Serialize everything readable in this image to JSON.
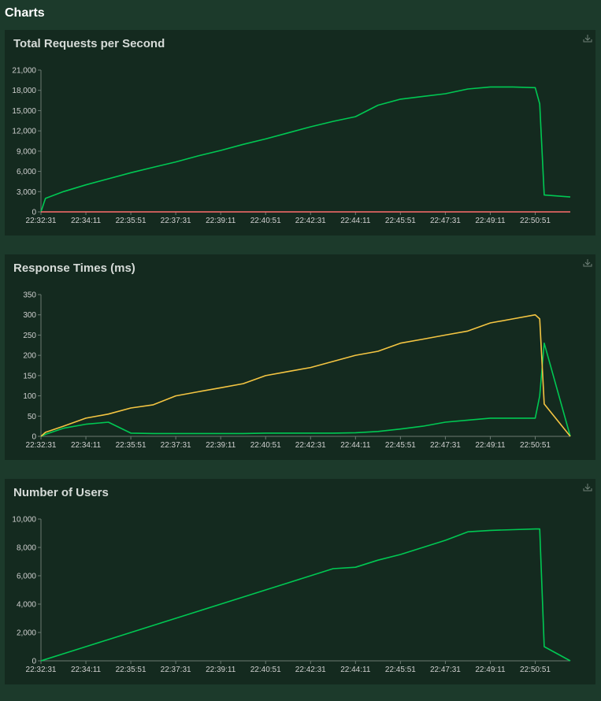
{
  "page_title": "Charts",
  "chart_data": [
    {
      "type": "line",
      "title": "Total Requests per Second",
      "x": [
        "22:32:31",
        "22:32:41",
        "22:33:21",
        "22:34:11",
        "22:35:01",
        "22:35:51",
        "22:36:41",
        "22:37:31",
        "22:38:21",
        "22:39:11",
        "22:40:01",
        "22:40:51",
        "22:41:41",
        "22:42:31",
        "22:43:21",
        "22:44:11",
        "22:45:01",
        "22:45:51",
        "22:46:41",
        "22:47:31",
        "22:48:21",
        "22:49:11",
        "22:50:01",
        "22:50:51",
        "22:51:01",
        "22:51:11",
        "22:52:09"
      ],
      "series": [
        {
          "color": "#00c853",
          "values": [
            0,
            2000,
            3000,
            4000,
            4900,
            5800,
            6600,
            7400,
            8300,
            9100,
            10000,
            10800,
            11700,
            12600,
            13400,
            14100,
            15800,
            16700,
            17100,
            17500,
            18200,
            18500,
            18500,
            18400,
            16000,
            2500,
            2200
          ]
        },
        {
          "color": "#ff6d6d",
          "values": [
            0,
            0,
            0,
            0,
            0,
            0,
            0,
            0,
            0,
            0,
            0,
            0,
            0,
            0,
            0,
            0,
            0,
            0,
            0,
            0,
            0,
            0,
            0,
            0,
            0,
            0,
            0
          ]
        }
      ],
      "xlim": [
        "22:32:31",
        "22:52:09"
      ],
      "xticks": [
        "22:32:31",
        "22:34:11",
        "22:35:51",
        "22:37:31",
        "22:39:11",
        "22:40:51",
        "22:42:31",
        "22:44:11",
        "22:45:51",
        "22:47:31",
        "22:49:11",
        "22:50:51"
      ],
      "ylim": [
        0,
        21000
      ],
      "yticks": [
        0,
        {
          "value": 3000,
          "label": "3,000"
        },
        {
          "value": 6000,
          "label": "6,000"
        },
        {
          "value": 9000,
          "label": "9,000"
        },
        {
          "value": 12000,
          "label": "12,000"
        },
        {
          "value": 15000,
          "label": "15,000"
        },
        {
          "value": 18000,
          "label": "18,000"
        },
        {
          "value": 21000,
          "label": "21,000"
        }
      ]
    },
    {
      "type": "line",
      "title": "Response Times (ms)",
      "x": [
        "22:32:31",
        "22:32:41",
        "22:33:21",
        "22:34:11",
        "22:35:01",
        "22:35:51",
        "22:36:41",
        "22:37:31",
        "22:38:21",
        "22:39:11",
        "22:40:01",
        "22:40:51",
        "22:41:41",
        "22:42:31",
        "22:43:21",
        "22:44:11",
        "22:45:01",
        "22:45:51",
        "22:46:41",
        "22:47:31",
        "22:48:21",
        "22:49:11",
        "22:50:01",
        "22:50:51",
        "22:51:01",
        "22:51:11",
        "22:52:09"
      ],
      "series": [
        {
          "color": "#00c853",
          "values": [
            0,
            5,
            20,
            30,
            35,
            8,
            7,
            7,
            7,
            7,
            7,
            8,
            8,
            8,
            8,
            9,
            12,
            18,
            25,
            35,
            40,
            45,
            45,
            45,
            100,
            230,
            0
          ]
        },
        {
          "color": "#f4c542",
          "values": [
            0,
            10,
            25,
            45,
            55,
            70,
            78,
            100,
            110,
            120,
            130,
            150,
            160,
            170,
            185,
            200,
            210,
            230,
            240,
            250,
            260,
            280,
            290,
            300,
            290,
            80,
            0
          ]
        }
      ],
      "xlim": [
        "22:32:31",
        "22:52:09"
      ],
      "xticks": [
        "22:32:31",
        "22:34:11",
        "22:35:51",
        "22:37:31",
        "22:39:11",
        "22:40:51",
        "22:42:31",
        "22:44:11",
        "22:45:51",
        "22:47:31",
        "22:49:11",
        "22:50:51"
      ],
      "ylim": [
        0,
        350
      ],
      "yticks": [
        0,
        50,
        100,
        150,
        200,
        250,
        300,
        350
      ]
    },
    {
      "type": "line",
      "title": "Number of Users",
      "x": [
        "22:32:31",
        "22:32:41",
        "22:33:21",
        "22:34:11",
        "22:35:01",
        "22:35:51",
        "22:36:41",
        "22:37:31",
        "22:38:21",
        "22:39:11",
        "22:40:01",
        "22:40:51",
        "22:41:41",
        "22:42:31",
        "22:43:21",
        "22:44:11",
        "22:45:01",
        "22:45:51",
        "22:46:41",
        "22:47:31",
        "22:48:21",
        "22:49:11",
        "22:50:01",
        "22:50:51",
        "22:51:01",
        "22:51:11",
        "22:52:09"
      ],
      "series": [
        {
          "color": "#00c853",
          "values": [
            0,
            100,
            500,
            1000,
            1500,
            2000,
            2500,
            3000,
            3500,
            4000,
            4500,
            5000,
            5500,
            6000,
            6500,
            6600,
            7100,
            7500,
            8000,
            8500,
            9100,
            9200,
            9250,
            9300,
            9300,
            1000,
            0
          ]
        }
      ],
      "xlim": [
        "22:32:31",
        "22:52:09"
      ],
      "xticks": [
        "22:32:31",
        "22:34:11",
        "22:35:51",
        "22:37:31",
        "22:39:11",
        "22:40:51",
        "22:42:31",
        "22:44:11",
        "22:45:51",
        "22:47:31",
        "22:49:11",
        "22:50:51"
      ],
      "ylim": [
        0,
        10000
      ],
      "yticks": [
        0,
        {
          "value": 2000,
          "label": "2,000"
        },
        {
          "value": 4000,
          "label": "4,000"
        },
        {
          "value": 6000,
          "label": "6,000"
        },
        {
          "value": 8000,
          "label": "8,000"
        },
        {
          "value": 10000,
          "label": "10,000"
        }
      ]
    }
  ]
}
